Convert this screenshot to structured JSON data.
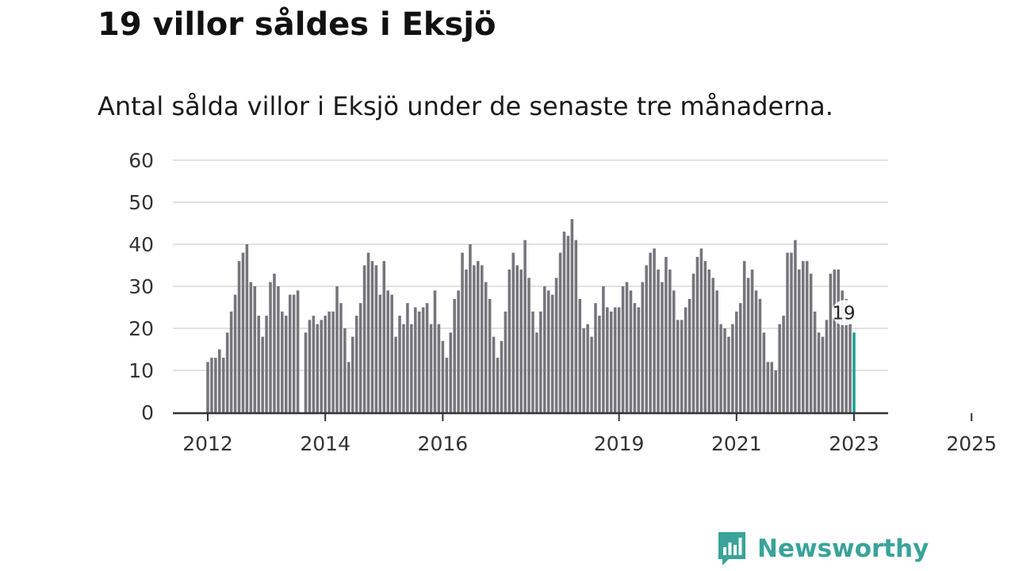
{
  "title": "19 villor såldes i Eksjö",
  "subtitle": "Antal sålda villor i Eksjö under de senaste tre månaderna.",
  "brand": {
    "name": "Newsworthy",
    "icon": "bar-chart-speech-bubble-icon",
    "color": "#3aa39a"
  },
  "colors": {
    "bar": "#76757c",
    "highlight": "#1f9e97",
    "grid": "#d9d9d9",
    "axis": "#333333"
  },
  "chart_data": {
    "type": "bar",
    "title": "19 villor såldes i Eksjö",
    "subtitle": "Antal sålda villor i Eksjö under de senaste tre månaderna.",
    "xlabel": "",
    "ylabel": "",
    "ylim": [
      0,
      60
    ],
    "yticks": [
      0,
      10,
      20,
      30,
      40,
      50,
      60
    ],
    "xticks": [
      {
        "label": "2012",
        "index": 0
      },
      {
        "label": "2014",
        "index": 30
      },
      {
        "label": "2016",
        "index": 60
      },
      {
        "label": "2019",
        "index": 105
      },
      {
        "label": "2021",
        "index": 135
      },
      {
        "label": "2023",
        "index": 165
      },
      {
        "label": "2025",
        "index": 195
      }
    ],
    "grid": true,
    "highlight": {
      "value": 19,
      "label": "19"
    },
    "values": [
      12,
      13,
      13,
      15,
      13,
      19,
      24,
      28,
      36,
      38,
      40,
      31,
      30,
      23,
      18,
      23,
      31,
      33,
      30,
      24,
      23,
      28,
      28,
      29,
      null,
      19,
      22,
      23,
      21,
      22,
      23,
      24,
      24,
      30,
      26,
      20,
      12,
      18,
      23,
      26,
      35,
      38,
      36,
      35,
      28,
      36,
      29,
      28,
      18,
      23,
      21,
      26,
      21,
      25,
      24,
      25,
      26,
      21,
      29,
      21,
      17,
      13,
      19,
      27,
      29,
      38,
      34,
      40,
      35,
      36,
      35,
      31,
      27,
      18,
      13,
      17,
      24,
      34,
      38,
      35,
      34,
      41,
      32,
      24,
      19,
      24,
      30,
      29,
      28,
      32,
      38,
      43,
      42,
      46,
      41,
      27,
      20,
      21,
      18,
      26,
      23,
      30,
      25,
      24,
      25,
      25,
      30,
      31,
      29,
      26,
      25,
      31,
      35,
      38,
      39,
      34,
      31,
      37,
      34,
      29,
      22,
      22,
      25,
      27,
      33,
      37,
      39,
      36,
      34,
      32,
      29,
      21,
      20,
      18,
      21,
      24,
      26,
      36,
      32,
      34,
      29,
      27,
      19,
      12,
      12,
      10,
      21,
      23,
      38,
      38,
      41,
      34,
      36,
      36,
      33,
      24,
      19,
      18,
      22,
      33,
      34,
      34,
      29,
      27,
      21,
      19
    ]
  }
}
